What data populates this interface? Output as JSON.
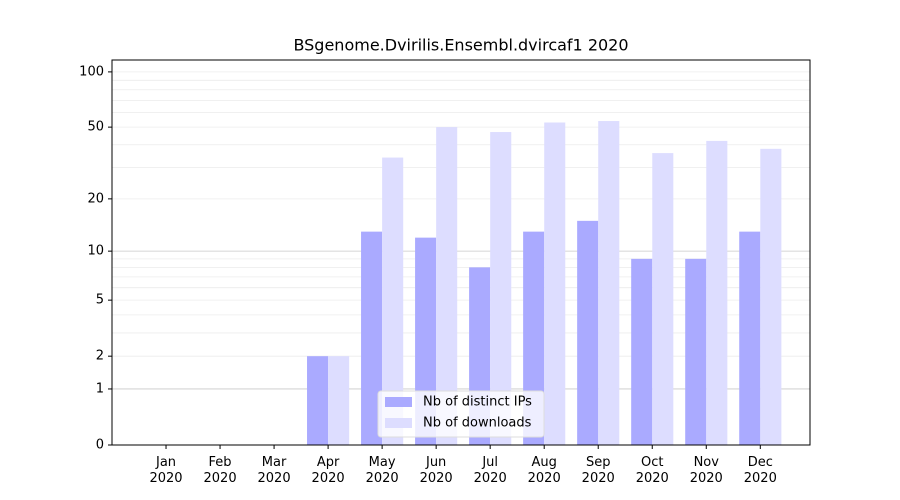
{
  "chart_data": {
    "type": "bar",
    "title": "BSgenome.Dvirilis.Ensembl.dvircaf1 2020",
    "categories": [
      "Jan\n2020",
      "Feb\n2020",
      "Mar\n2020",
      "Apr\n2020",
      "May\n2020",
      "Jun\n2020",
      "Jul\n2020",
      "Aug\n2020",
      "Sep\n2020",
      "Oct\n2020",
      "Nov\n2020",
      "Dec\n2020"
    ],
    "series": [
      {
        "name": "Nb of distinct IPs",
        "color": "#aaaaff",
        "values": [
          0,
          0,
          0,
          2,
          13,
          12,
          8,
          13,
          15,
          9,
          9,
          13
        ]
      },
      {
        "name": "Nb of downloads",
        "color": "#ddddff",
        "values": [
          0,
          0,
          0,
          2,
          34,
          50,
          47,
          53,
          54,
          36,
          42,
          38
        ]
      }
    ],
    "yscale": "log1p",
    "ylim": [
      0,
      116
    ],
    "yticks": [
      0,
      1,
      2,
      5,
      10,
      20,
      50,
      100
    ],
    "minor_yticks": [
      3,
      4,
      6,
      7,
      8,
      9,
      30,
      40,
      60,
      70,
      80,
      90
    ],
    "grid": true,
    "legend": "lower center"
  }
}
